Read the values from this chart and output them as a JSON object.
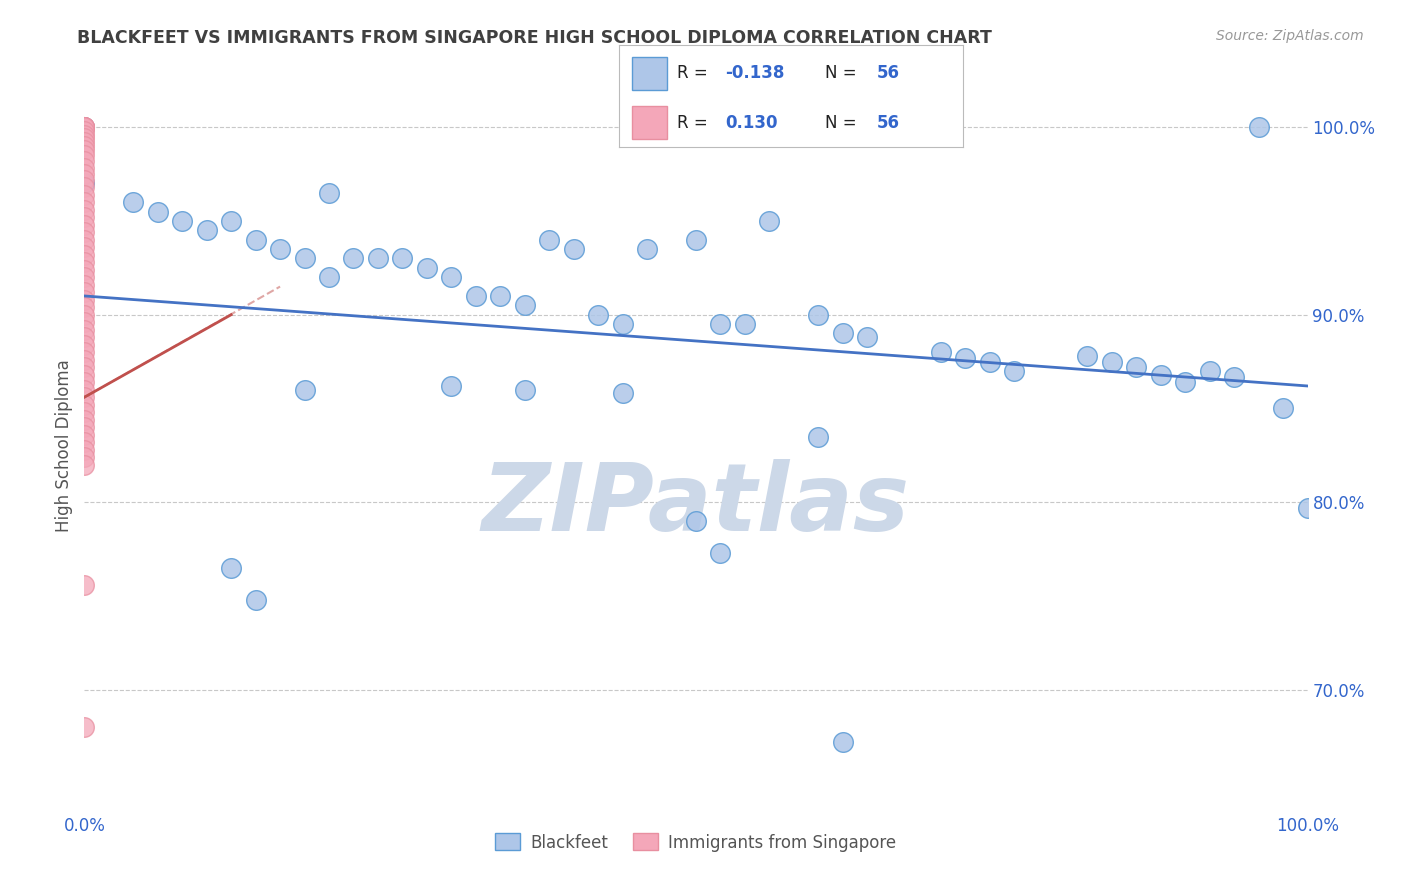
{
  "title": "BLACKFEET VS IMMIGRANTS FROM SINGAPORE HIGH SCHOOL DIPLOMA CORRELATION CHART",
  "source_text": "Source: ZipAtlas.com",
  "ylabel": "High School Diploma",
  "watermark": "ZIPatlas",
  "x_min": 0.0,
  "x_max": 1.0,
  "y_min": 0.635,
  "y_max": 1.025,
  "y_ticks": [
    0.7,
    0.8,
    0.9,
    1.0
  ],
  "y_tick_labels": [
    "70.0%",
    "80.0%",
    "90.0%",
    "100.0%"
  ],
  "blue_color": "#5b9bd5",
  "blue_fill": "#aec6e8",
  "pink_color": "#e88fa0",
  "pink_fill": "#f4a7b9",
  "trend_blue": "#4472c4",
  "trend_pink": "#c0504d",
  "bg_color": "#ffffff",
  "grid_color": "#c8c8c8",
  "title_color": "#404040",
  "watermark_color": "#ccd8e8",
  "blue_scatter_x": [
    0.0,
    0.0,
    0.04,
    0.06,
    0.08,
    0.1,
    0.12,
    0.14,
    0.16,
    0.18,
    0.2,
    0.2,
    0.22,
    0.24,
    0.26,
    0.28,
    0.3,
    0.32,
    0.34,
    0.36,
    0.38,
    0.4,
    0.42,
    0.44,
    0.46,
    0.5,
    0.52,
    0.54,
    0.56,
    0.6,
    0.62,
    0.64,
    0.7,
    0.72,
    0.74,
    0.76,
    0.82,
    0.84,
    0.86,
    0.88,
    0.9,
    0.92,
    0.94,
    0.96,
    0.98,
    1.0,
    0.18,
    0.3,
    0.36,
    0.44,
    0.5,
    0.6,
    0.12,
    0.14,
    0.52,
    0.62
  ],
  "blue_scatter_y": [
    1.0,
    0.97,
    0.96,
    0.955,
    0.95,
    0.945,
    0.95,
    0.94,
    0.935,
    0.93,
    0.92,
    0.965,
    0.93,
    0.93,
    0.93,
    0.925,
    0.92,
    0.91,
    0.91,
    0.905,
    0.94,
    0.935,
    0.9,
    0.895,
    0.935,
    0.94,
    0.895,
    0.895,
    0.95,
    0.9,
    0.89,
    0.888,
    0.88,
    0.877,
    0.875,
    0.87,
    0.878,
    0.875,
    0.872,
    0.868,
    0.864,
    0.87,
    0.867,
    1.0,
    0.85,
    0.797,
    0.86,
    0.862,
    0.86,
    0.858,
    0.79,
    0.835,
    0.765,
    0.748,
    0.773,
    0.672
  ],
  "pink_scatter_x": [
    0.0,
    0.0,
    0.0,
    0.0,
    0.0,
    0.0,
    0.0,
    0.0,
    0.0,
    0.0,
    0.0,
    0.0,
    0.0,
    0.0,
    0.0,
    0.0,
    0.0,
    0.0,
    0.0,
    0.0,
    0.0,
    0.0,
    0.0,
    0.0,
    0.0,
    0.0,
    0.0,
    0.0,
    0.0,
    0.0,
    0.0,
    0.0,
    0.0,
    0.0,
    0.0,
    0.0,
    0.0,
    0.0,
    0.0,
    0.0,
    0.0,
    0.0,
    0.0,
    0.0,
    0.0,
    0.0,
    0.0,
    0.0,
    0.0,
    0.0,
    0.0,
    0.0,
    0.0,
    0.0,
    0.0,
    0.0
  ],
  "pink_scatter_y": [
    1.0,
    1.0,
    1.0,
    1.0,
    1.0,
    0.998,
    0.996,
    0.994,
    0.992,
    0.99,
    0.988,
    0.985,
    0.982,
    0.978,
    0.975,
    0.972,
    0.968,
    0.964,
    0.96,
    0.956,
    0.952,
    0.948,
    0.944,
    0.94,
    0.936,
    0.932,
    0.928,
    0.924,
    0.92,
    0.916,
    0.912,
    0.908,
    0.904,
    0.9,
    0.896,
    0.892,
    0.888,
    0.884,
    0.88,
    0.876,
    0.872,
    0.868,
    0.864,
    0.86,
    0.856,
    0.852,
    0.848,
    0.844,
    0.84,
    0.836,
    0.832,
    0.828,
    0.824,
    0.82,
    0.756,
    0.68
  ],
  "blue_line_x": [
    0.0,
    1.0
  ],
  "blue_line_y": [
    0.91,
    0.862
  ],
  "pink_line_x": [
    0.0,
    0.12
  ],
  "pink_line_y": [
    0.856,
    0.9
  ]
}
